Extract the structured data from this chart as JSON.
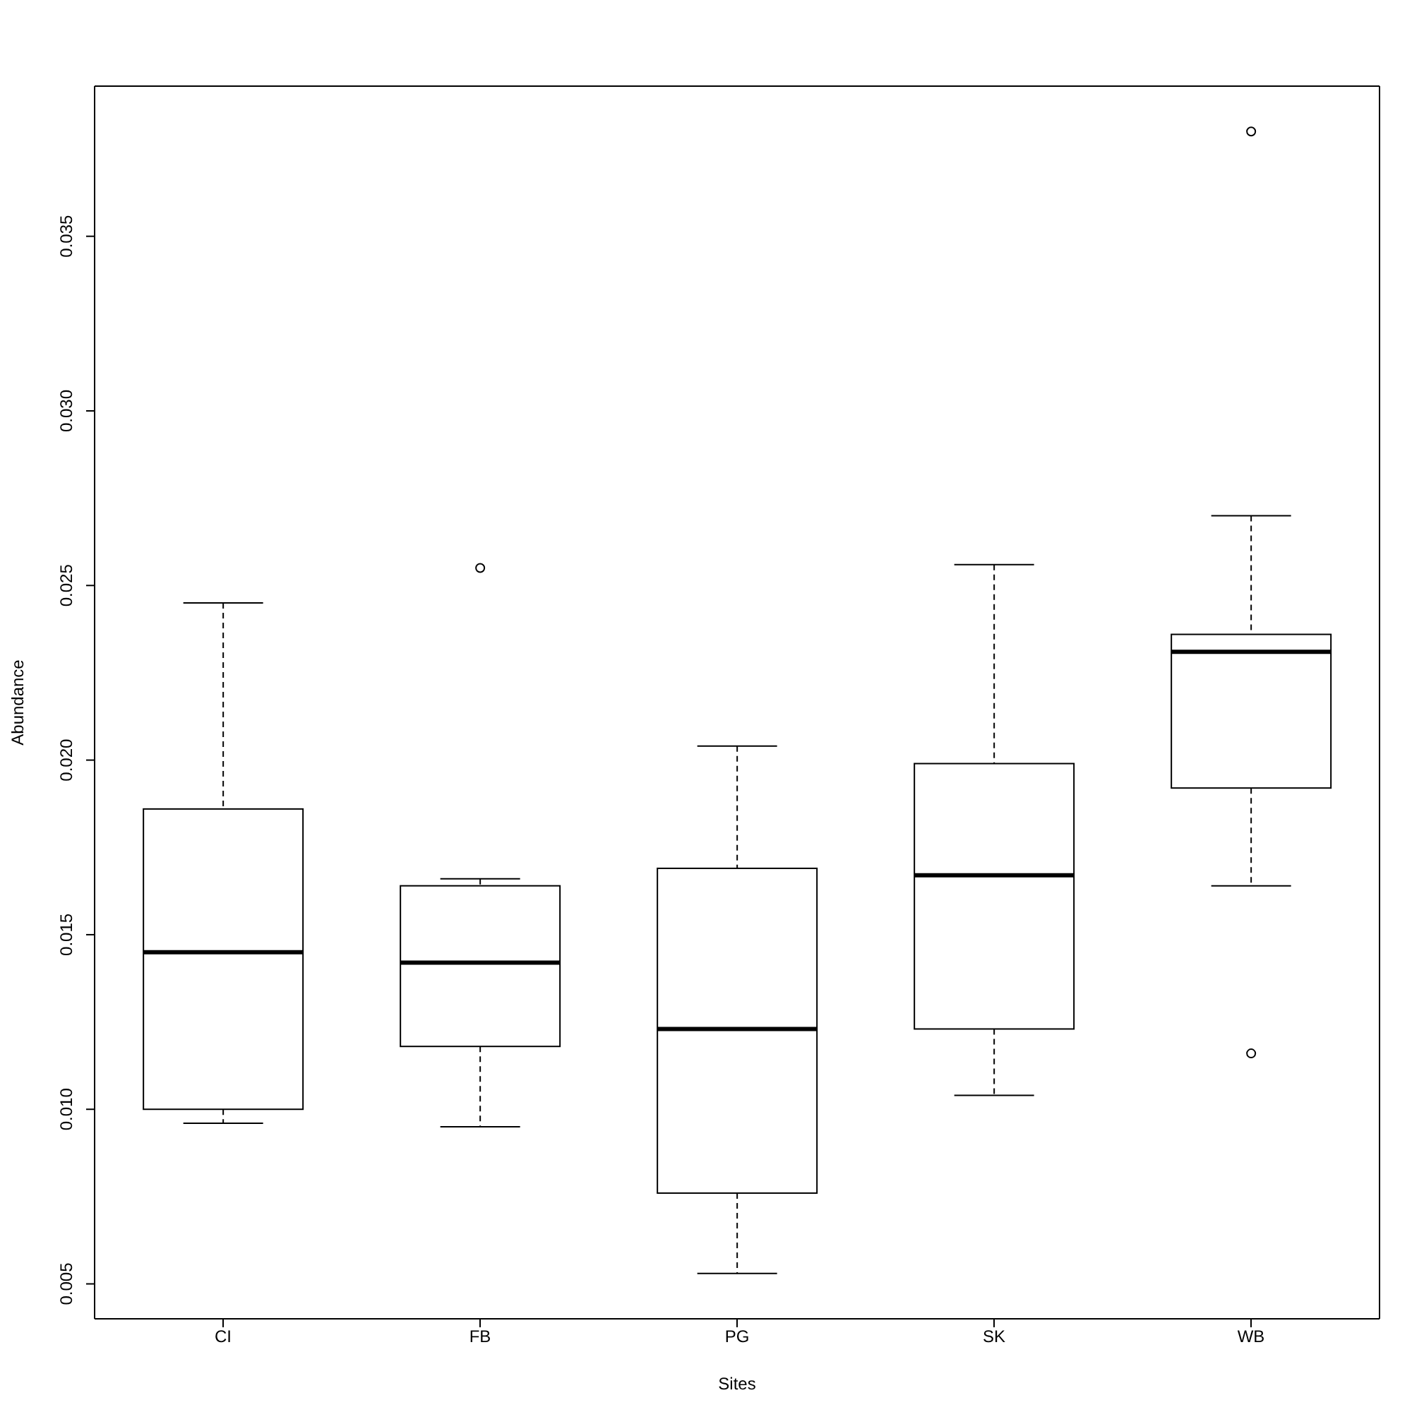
{
  "chart_data": {
    "type": "box",
    "xlabel": "Sites",
    "ylabel": "Abundance",
    "categories": [
      "CI",
      "FB",
      "PG",
      "SK",
      "WB"
    ],
    "boxes": [
      {
        "low": 0.0096,
        "q1": 0.01,
        "median": 0.0145,
        "q3": 0.0186,
        "high": 0.0245
      },
      {
        "low": 0.0095,
        "q1": 0.0118,
        "median": 0.0142,
        "q3": 0.0164,
        "high": 0.0166,
        "outliers": [
          0.0255
        ]
      },
      {
        "low": 0.0053,
        "q1": 0.0076,
        "median": 0.0123,
        "q3": 0.0169,
        "high": 0.0204
      },
      {
        "low": 0.0104,
        "q1": 0.0123,
        "median": 0.0167,
        "q3": 0.0199,
        "high": 0.0256
      },
      {
        "low": 0.0164,
        "q1": 0.0192,
        "median": 0.0231,
        "q3": 0.0236,
        "high": 0.027,
        "outliers": [
          0.038,
          0.0116
        ]
      }
    ],
    "ylim": [
      0.004,
      0.0393
    ],
    "yticks": [
      {
        "value": 0.005,
        "label": "0.005"
      },
      {
        "value": 0.01,
        "label": "0.010"
      },
      {
        "value": 0.015,
        "label": "0.015"
      },
      {
        "value": 0.02,
        "label": "0.020"
      },
      {
        "value": 0.025,
        "label": "0.025"
      },
      {
        "value": 0.03,
        "label": "0.030"
      },
      {
        "value": 0.035,
        "label": "0.035"
      }
    ]
  }
}
